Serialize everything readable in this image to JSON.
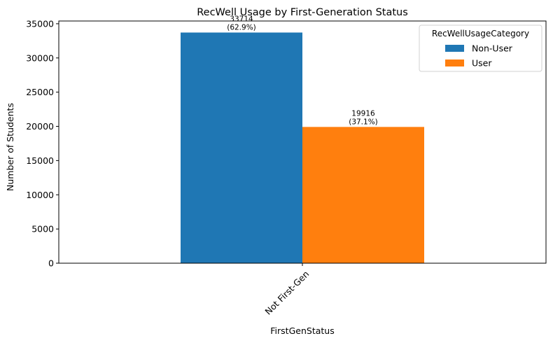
{
  "chart_data": {
    "type": "bar",
    "title": "RecWell Usage by First-Generation Status",
    "xlabel": "FirstGenStatus",
    "ylabel": "Number of Students",
    "categories": [
      "Not First-Gen"
    ],
    "ylim": [
      0,
      35400
    ],
    "yticks": [
      0,
      5000,
      10000,
      15000,
      20000,
      25000,
      30000,
      35000
    ],
    "grid": false,
    "legend": {
      "title": "RecWellUsageCategory",
      "placement": "top-right"
    },
    "series": [
      {
        "name": "Non-User",
        "values": [
          33714
        ],
        "color": "#1f77b4",
        "labels": [
          [
            "33714",
            "(62.9%)"
          ]
        ]
      },
      {
        "name": "User",
        "values": [
          19916
        ],
        "color": "#ff7f0e",
        "labels": [
          [
            "19916",
            "(37.1%)"
          ]
        ]
      }
    ]
  }
}
